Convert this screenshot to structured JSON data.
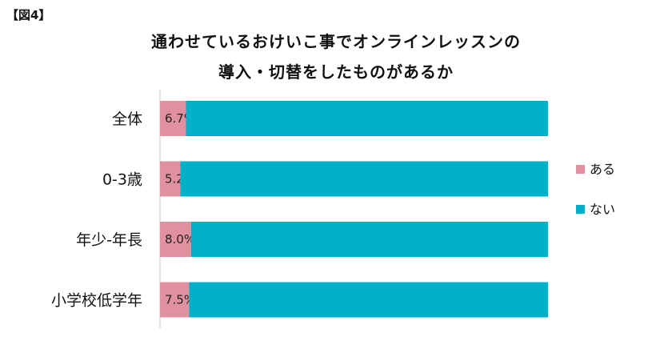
{
  "figure_label": "【図4】",
  "chart_data": {
    "type": "bar",
    "orientation": "horizontal",
    "stacked": "percent",
    "title_lines": [
      "通わせているおけいこ事でオンラインレッスンの",
      "導入・切替をしたものがあるか"
    ],
    "categories": [
      "全体",
      "0-3歳",
      "年少-年長",
      "小学校低学年"
    ],
    "series": [
      {
        "name": "ある",
        "values": [
          6.7,
          5.2,
          8.0,
          7.5
        ],
        "color": "#e0909f",
        "labels": [
          "6.7%",
          "5.2%",
          "8.0%",
          "7.5%"
        ]
      },
      {
        "name": "ない",
        "values": [
          93.3,
          94.8,
          92.0,
          92.5
        ],
        "color": "#00b0c8"
      }
    ],
    "xlim": [
      0,
      100
    ],
    "legend_position": "right",
    "grid": false
  }
}
